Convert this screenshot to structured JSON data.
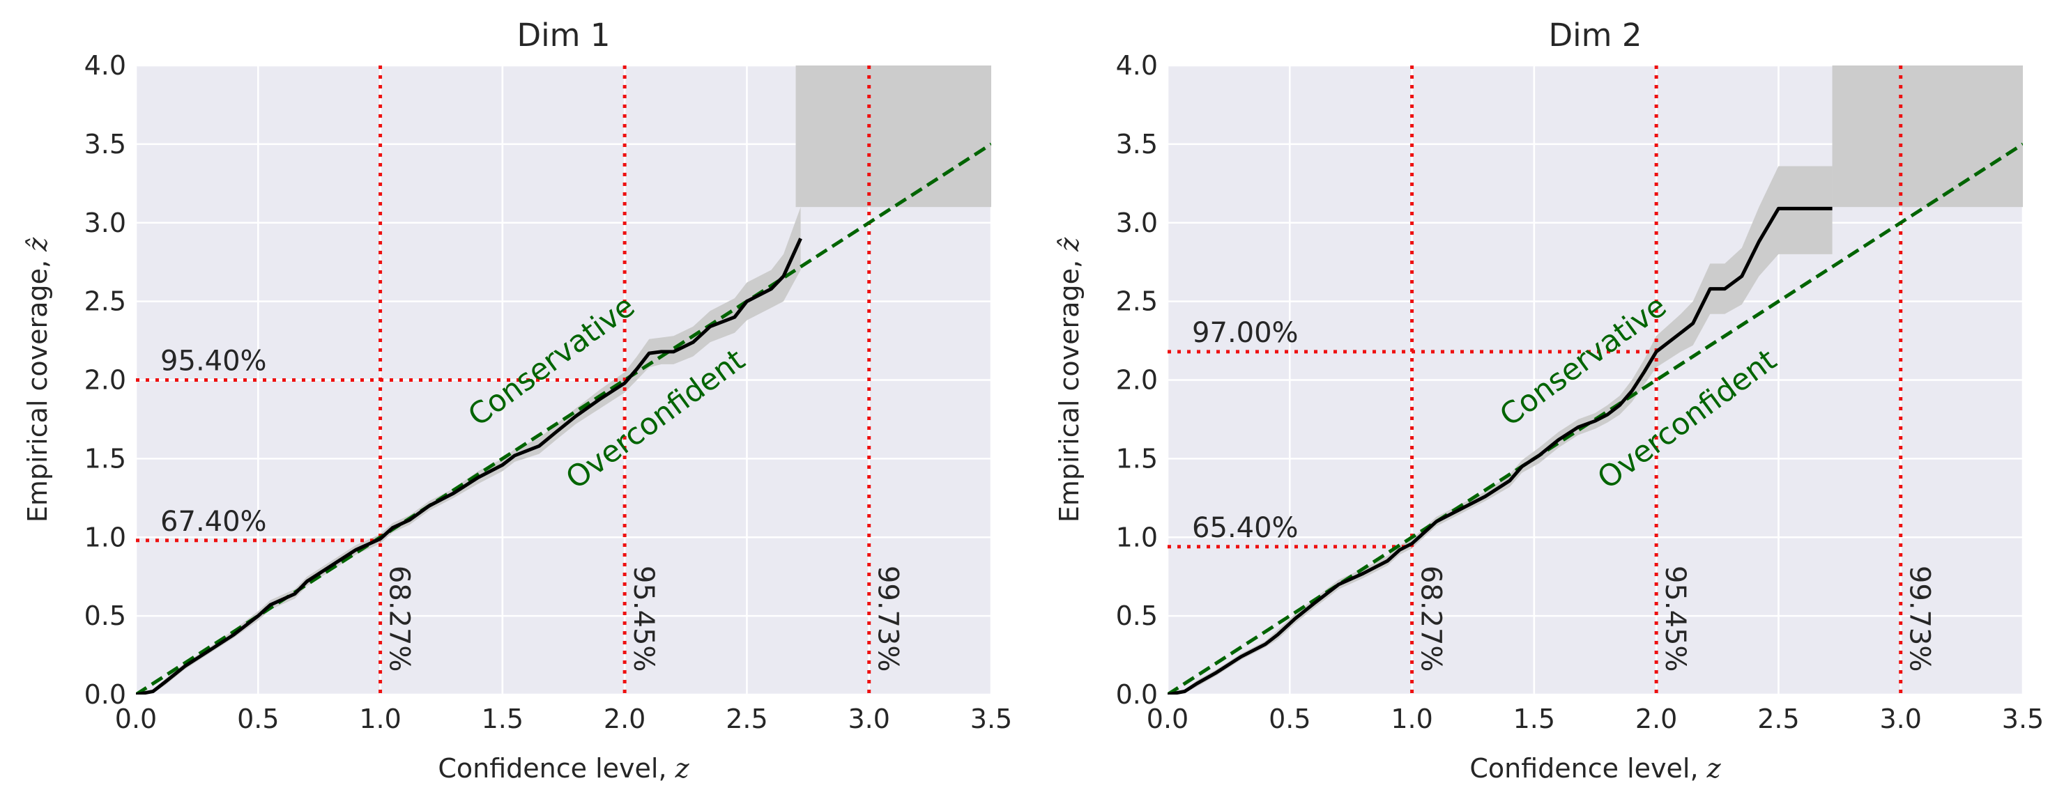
{
  "figure": {
    "colors": {
      "background": "#eaeaf2",
      "grid": "#ffffff",
      "band": "#cccccc",
      "reference": "#ee1111",
      "diagonal": "#006400",
      "line": "#000000"
    }
  },
  "chart_data": [
    {
      "type": "line",
      "title": "Dim 1",
      "xlabel_text": "Confidence level, ",
      "xlabel_var": "z",
      "ylabel_text": "Empirical coverage, ",
      "ylabel_var": "ẑ",
      "xlim": [
        0,
        3.5
      ],
      "ylim": [
        0,
        4.0
      ],
      "xticks": [
        0.0,
        0.5,
        1.0,
        1.5,
        2.0,
        2.5,
        3.0,
        3.5
      ],
      "xtick_labels": [
        "0.0",
        "0.5",
        "1.0",
        "1.5",
        "2.0",
        "2.5",
        "3.0",
        "3.5"
      ],
      "yticks": [
        0.0,
        0.5,
        1.0,
        1.5,
        2.0,
        2.5,
        3.0,
        3.5,
        4.0
      ],
      "ytick_labels": [
        "0.0",
        "0.5",
        "1.0",
        "1.5",
        "2.0",
        "2.5",
        "3.0",
        "3.5",
        "4.0"
      ],
      "region_labels": {
        "upper": "Conservative",
        "lower": "Overconfident"
      },
      "series": {
        "name": "empirical coverage",
        "x": [
          0.0,
          0.07,
          0.12,
          0.2,
          0.3,
          0.4,
          0.5,
          0.55,
          0.65,
          0.7,
          0.8,
          0.9,
          1.0,
          1.05,
          1.12,
          1.2,
          1.3,
          1.4,
          1.5,
          1.55,
          1.65,
          1.72,
          1.8,
          1.9,
          2.0,
          2.05,
          2.1,
          2.15,
          2.2,
          2.28,
          2.35,
          2.45,
          2.5,
          2.6,
          2.65,
          2.72
        ],
        "y": [
          0.0,
          0.02,
          0.08,
          0.18,
          0.28,
          0.38,
          0.5,
          0.57,
          0.64,
          0.72,
          0.82,
          0.92,
          0.99,
          1.06,
          1.11,
          1.2,
          1.28,
          1.38,
          1.46,
          1.52,
          1.58,
          1.67,
          1.77,
          1.88,
          1.98,
          2.07,
          2.17,
          2.18,
          2.18,
          2.24,
          2.34,
          2.4,
          2.5,
          2.58,
          2.66,
          2.9
        ],
        "band_lower": [
          0.0,
          0.01,
          0.06,
          0.16,
          0.26,
          0.36,
          0.47,
          0.54,
          0.61,
          0.69,
          0.79,
          0.89,
          0.96,
          1.03,
          1.08,
          1.17,
          1.25,
          1.34,
          1.42,
          1.48,
          1.53,
          1.62,
          1.72,
          1.82,
          1.92,
          2.0,
          2.08,
          2.1,
          2.1,
          2.15,
          2.24,
          2.3,
          2.38,
          2.46,
          2.5,
          2.7
        ],
        "band_upper": [
          0.0,
          0.03,
          0.1,
          0.2,
          0.3,
          0.41,
          0.53,
          0.6,
          0.67,
          0.75,
          0.85,
          0.95,
          1.02,
          1.09,
          1.14,
          1.23,
          1.31,
          1.42,
          1.5,
          1.56,
          1.63,
          1.72,
          1.82,
          1.94,
          2.05,
          2.15,
          2.26,
          2.27,
          2.28,
          2.34,
          2.44,
          2.52,
          2.62,
          2.7,
          2.8,
          3.1
        ]
      },
      "tail_band": {
        "x": [
          2.7,
          3.5
        ],
        "y_lower": 3.1,
        "y_upper": 4.0
      },
      "horizontal_refs": [
        {
          "y": 0.98,
          "x_end": 1.0,
          "label": "67.40%"
        },
        {
          "y": 2.0,
          "x_end": 2.0,
          "label": "95.40%"
        }
      ],
      "vertical_refs": [
        {
          "x": 1.0,
          "label": "68.27%"
        },
        {
          "x": 2.0,
          "label": "95.45%"
        },
        {
          "x": 3.0,
          "label": "99.73%"
        }
      ]
    },
    {
      "type": "line",
      "title": "Dim 2",
      "xlabel_text": "Confidence level, ",
      "xlabel_var": "z",
      "ylabel_text": "Empirical coverage, ",
      "ylabel_var": "ẑ",
      "xlim": [
        0,
        3.5
      ],
      "ylim": [
        0,
        4.0
      ],
      "xticks": [
        0.0,
        0.5,
        1.0,
        1.5,
        2.0,
        2.5,
        3.0,
        3.5
      ],
      "xtick_labels": [
        "0.0",
        "0.5",
        "1.0",
        "1.5",
        "2.0",
        "2.5",
        "3.0",
        "3.5"
      ],
      "yticks": [
        0.0,
        0.5,
        1.0,
        1.5,
        2.0,
        2.5,
        3.0,
        3.5,
        4.0
      ],
      "ytick_labels": [
        "0.0",
        "0.5",
        "1.0",
        "1.5",
        "2.0",
        "2.5",
        "3.0",
        "3.5",
        "4.0"
      ],
      "region_labels": {
        "upper": "Conservative",
        "lower": "Overconfident"
      },
      "series": {
        "name": "empirical coverage",
        "x": [
          0.0,
          0.07,
          0.12,
          0.2,
          0.3,
          0.4,
          0.45,
          0.52,
          0.6,
          0.7,
          0.8,
          0.9,
          0.95,
          1.0,
          1.1,
          1.2,
          1.3,
          1.4,
          1.45,
          1.52,
          1.6,
          1.68,
          1.75,
          1.8,
          1.85,
          1.9,
          1.95,
          2.0,
          2.1,
          2.15,
          2.22,
          2.28,
          2.35,
          2.42,
          2.5,
          2.6,
          2.72
        ],
        "y": [
          0.0,
          0.02,
          0.07,
          0.14,
          0.24,
          0.32,
          0.38,
          0.48,
          0.58,
          0.7,
          0.77,
          0.85,
          0.92,
          0.96,
          1.1,
          1.18,
          1.26,
          1.36,
          1.45,
          1.52,
          1.62,
          1.7,
          1.74,
          1.78,
          1.84,
          1.93,
          2.05,
          2.18,
          2.3,
          2.36,
          2.58,
          2.58,
          2.66,
          2.88,
          3.09,
          3.09,
          3.09
        ],
        "band_lower": [
          0.0,
          0.01,
          0.05,
          0.12,
          0.22,
          0.3,
          0.35,
          0.45,
          0.55,
          0.67,
          0.74,
          0.82,
          0.89,
          0.93,
          1.07,
          1.15,
          1.23,
          1.32,
          1.41,
          1.47,
          1.57,
          1.65,
          1.69,
          1.73,
          1.78,
          1.86,
          1.97,
          2.08,
          2.18,
          2.22,
          2.42,
          2.42,
          2.48,
          2.66,
          2.8,
          2.8,
          2.8
        ],
        "band_upper": [
          0.0,
          0.03,
          0.09,
          0.16,
          0.26,
          0.34,
          0.41,
          0.51,
          0.61,
          0.73,
          0.8,
          0.88,
          0.95,
          0.99,
          1.13,
          1.21,
          1.29,
          1.4,
          1.49,
          1.57,
          1.67,
          1.75,
          1.79,
          1.84,
          1.9,
          2.0,
          2.13,
          2.28,
          2.42,
          2.5,
          2.74,
          2.74,
          2.84,
          3.1,
          3.36,
          3.36,
          3.36
        ]
      },
      "tail_band": {
        "x": [
          2.72,
          3.5
        ],
        "y_lower": 3.1,
        "y_upper": 4.0
      },
      "horizontal_refs": [
        {
          "y": 0.94,
          "x_end": 1.0,
          "label": "65.40%"
        },
        {
          "y": 2.18,
          "x_end": 2.0,
          "label": "97.00%"
        }
      ],
      "vertical_refs": [
        {
          "x": 1.0,
          "label": "68.27%"
        },
        {
          "x": 2.0,
          "label": "95.45%"
        },
        {
          "x": 3.0,
          "label": "99.73%"
        }
      ]
    }
  ]
}
